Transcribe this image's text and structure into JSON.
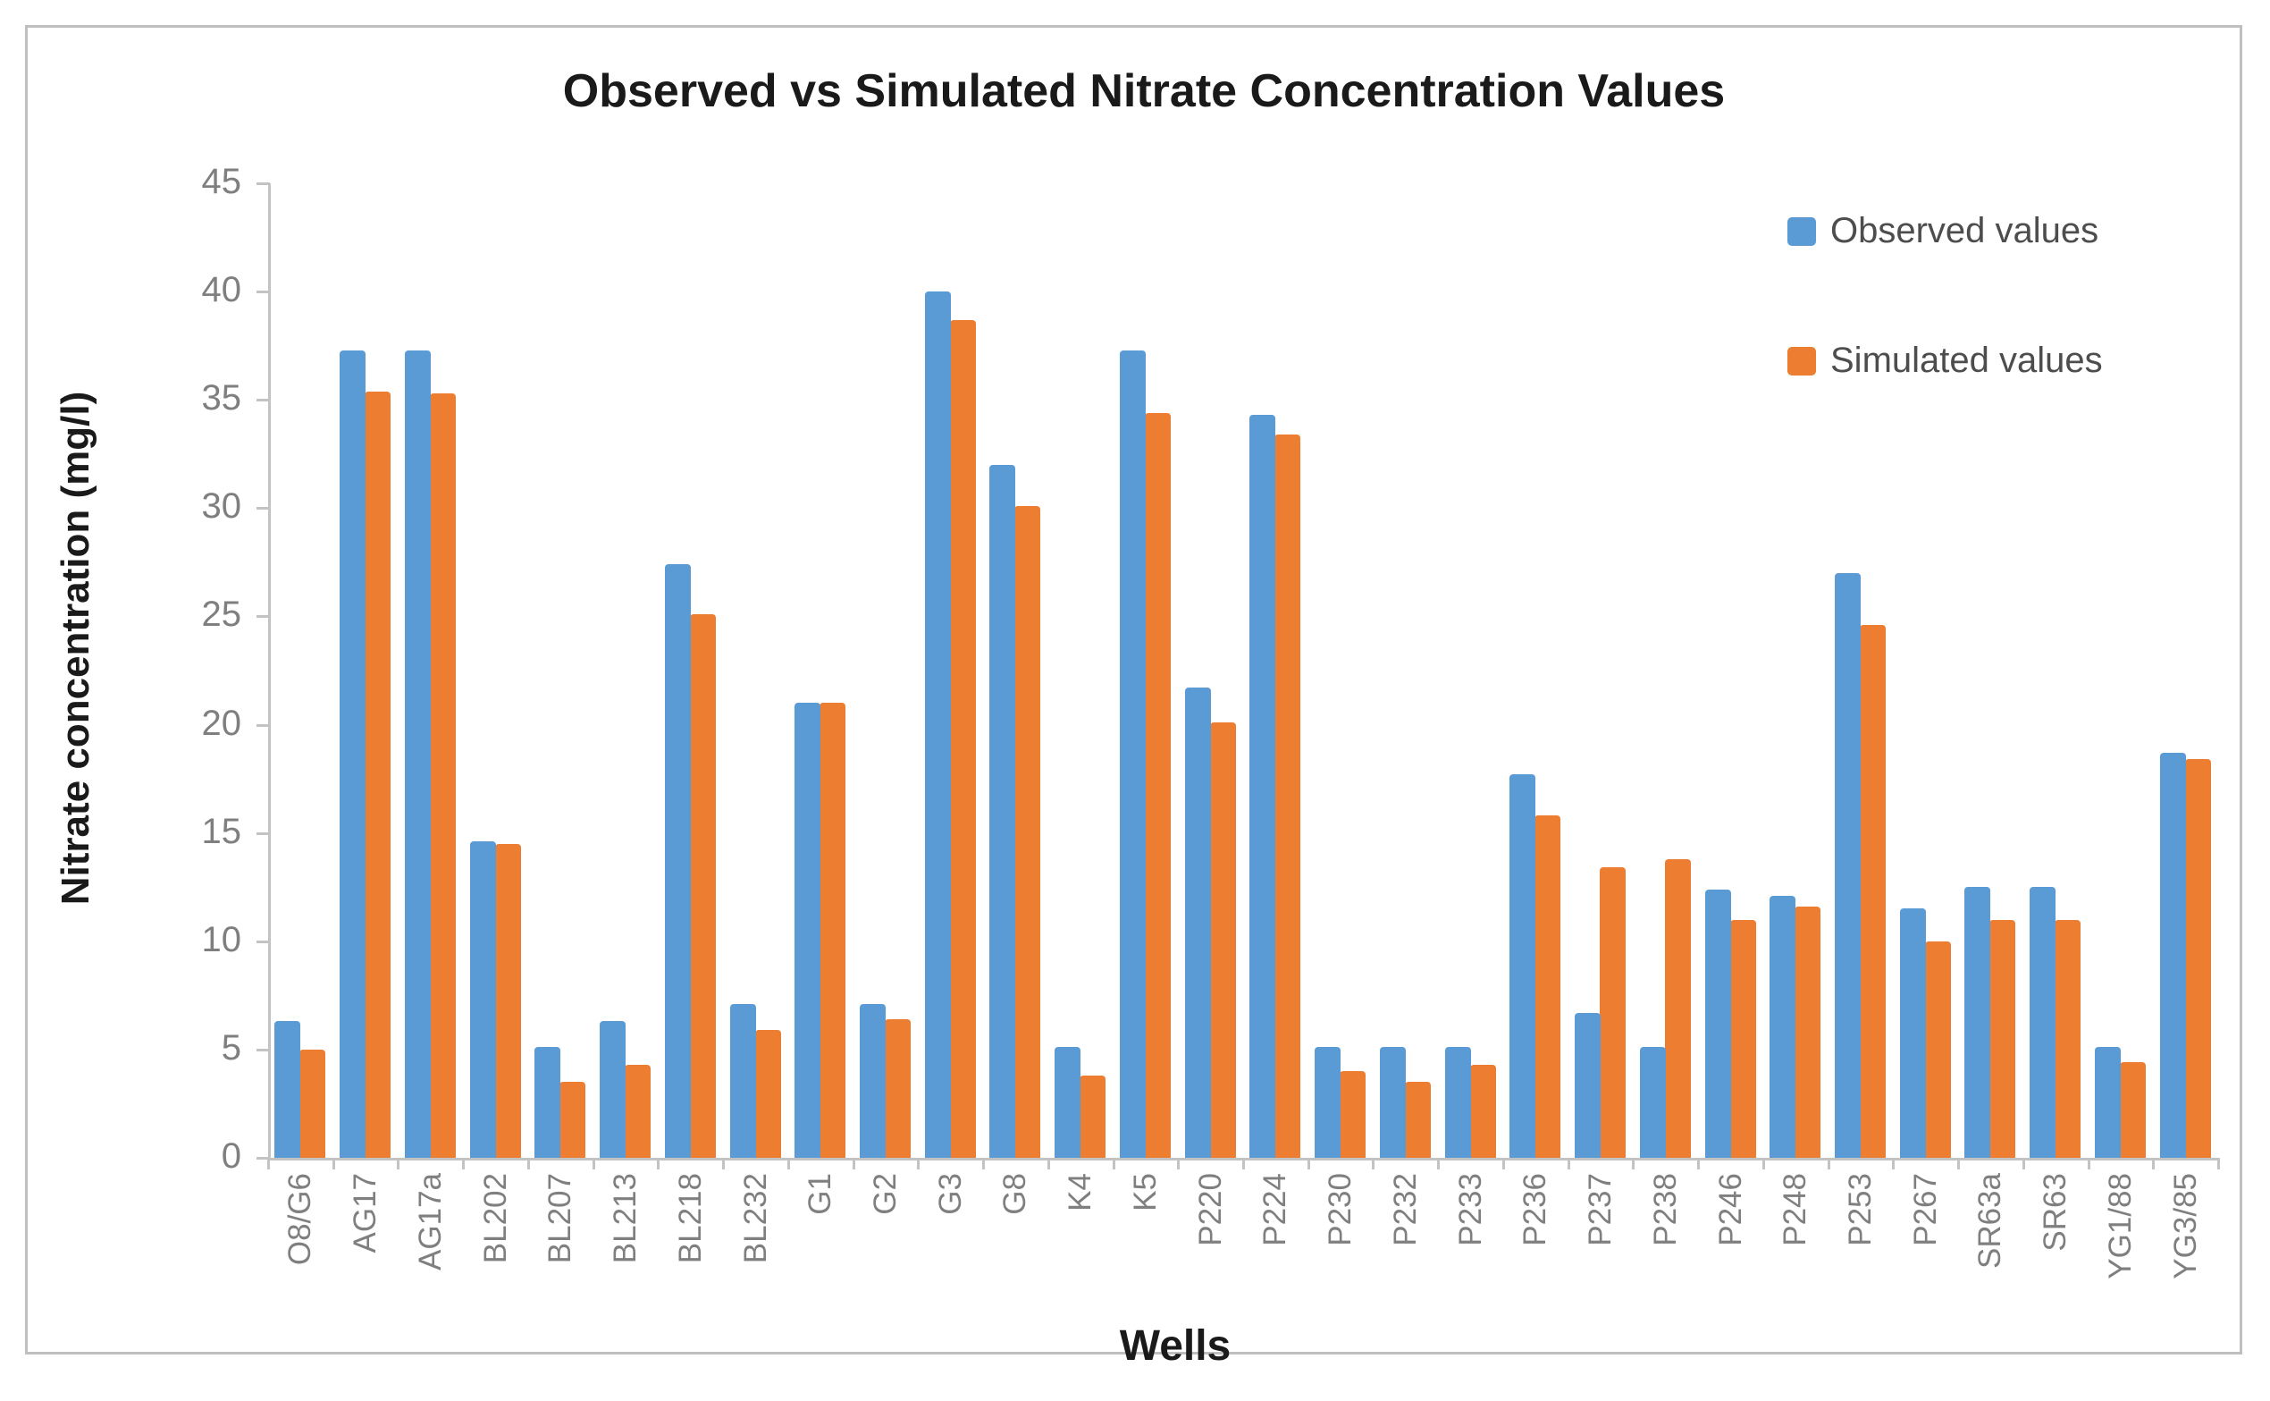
{
  "title": "Observed vs Simulated Nitrate Concentration Values",
  "legend": {
    "observed_label": "Observed values",
    "simulated_label": "Simulated values"
  },
  "colors": {
    "observed": "#5B9BD5",
    "simulated": "#ED7D31",
    "axis_line": "#C3C3C3",
    "tick_text": "#7F7F7F",
    "title_text": "#1A1A1A",
    "legend_text": "#4D4D4D",
    "frame_border": "#BFBFBF"
  },
  "chart_data": {
    "type": "bar",
    "title": "Observed vs Simulated Nitrate Concentration Values",
    "xlabel": "Wells",
    "ylabel": "Nitrate concentration (mg/l)",
    "ylim": [
      0,
      45
    ],
    "yticks": [
      0,
      5,
      10,
      15,
      20,
      25,
      30,
      35,
      40,
      45
    ],
    "grid": false,
    "legend_position": "top-right-inside",
    "categories": [
      "O8/G6",
      "AG17",
      "AG17a",
      "BL202",
      "BL207",
      "BL213",
      "BL218",
      "BL232",
      "G1",
      "G2",
      "G3",
      "G8",
      "K4",
      "K5",
      "P220",
      "P224",
      "P230",
      "P232",
      "P233",
      "P236",
      "P237",
      "P238",
      "P246",
      "P248",
      "P253",
      "P267",
      "SR63a",
      "SR63",
      "YG1/88",
      "YG3/85"
    ],
    "series": [
      {
        "name": "Observed values",
        "color": "#5B9BD5",
        "values": [
          6.3,
          37.3,
          37.3,
          14.6,
          5.1,
          6.3,
          27.4,
          7.1,
          21.0,
          7.1,
          40.0,
          32.0,
          5.1,
          37.3,
          21.7,
          34.3,
          5.1,
          5.1,
          5.1,
          17.7,
          6.7,
          5.1,
          12.4,
          12.1,
          27.0,
          11.5,
          12.5,
          12.5,
          5.1,
          18.7
        ]
      },
      {
        "name": "Simulated values",
        "color": "#ED7D31",
        "values": [
          5.0,
          35.4,
          35.3,
          14.5,
          3.5,
          4.3,
          25.1,
          5.9,
          21.0,
          6.4,
          38.7,
          30.1,
          3.8,
          34.4,
          20.1,
          33.4,
          4.0,
          3.5,
          4.3,
          15.8,
          13.4,
          13.8,
          11.0,
          11.6,
          24.6,
          10.0,
          11.0,
          11.0,
          4.4,
          18.4
        ]
      }
    ]
  }
}
